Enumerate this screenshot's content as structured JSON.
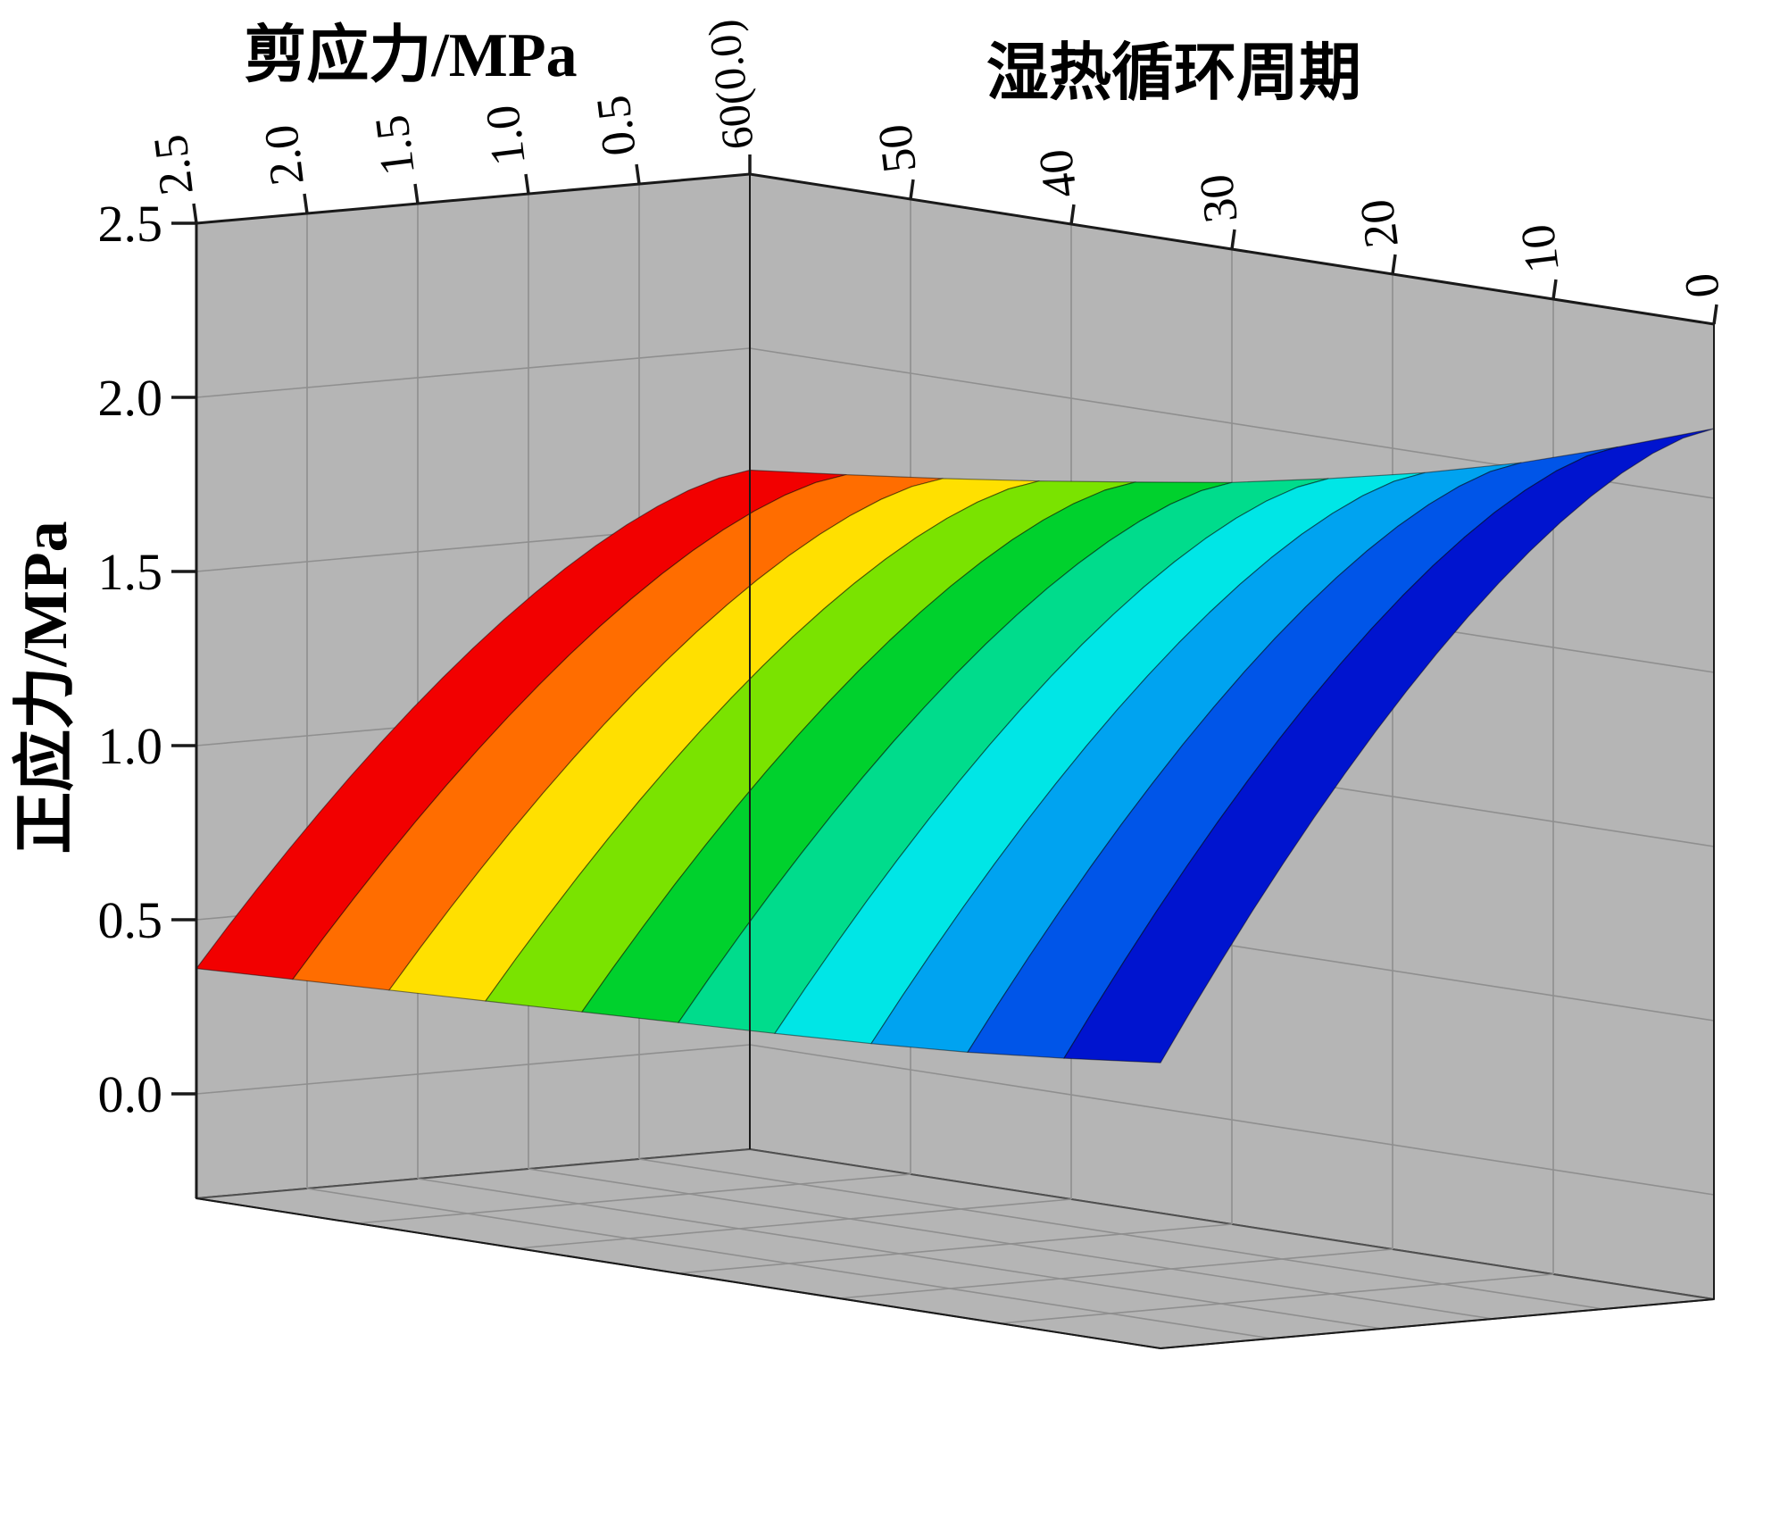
{
  "chart_data": {
    "type": "surface3d",
    "title": "",
    "z_axis": {
      "label": "正应力/MPa",
      "ticks": [
        "0.0",
        "0.5",
        "1.0",
        "1.5",
        "2.0",
        "2.5"
      ],
      "range": [
        0,
        2.5
      ]
    },
    "shear_axis": {
      "label": "剪应力/MPa",
      "ticks": [
        "2.5",
        "2.0",
        "1.5",
        "1.0",
        "0.5"
      ],
      "range": [
        0,
        2.5
      ]
    },
    "cycle_axis": {
      "label": "湿热循环周期",
      "ticks": [
        "50",
        "40",
        "30",
        "20",
        "10",
        "0"
      ],
      "corner_tick": "60(0.0)",
      "range": [
        0,
        60
      ]
    },
    "surface": {
      "colored_by": "cycle",
      "falloff_exponent": 1.55,
      "back_edge": {
        "cycles": [
          0,
          10,
          20,
          30,
          40,
          50,
          60
        ],
        "z": [
          2.2,
          2.04,
          1.92,
          1.83,
          1.76,
          1.7,
          1.65
        ]
      },
      "front_edge": {
        "cycles": [
          0,
          10,
          20,
          30,
          40,
          50,
          60
        ],
        "z": [
          0.52,
          0.47,
          0.44,
          0.42,
          0.4,
          0.38,
          0.36
        ]
      },
      "z_grid": {
        "shear": [
          0,
          0.5,
          1.0,
          1.5,
          2.0,
          2.5
        ],
        "cycles": [
          0,
          10,
          20,
          30,
          40,
          50,
          60
        ],
        "z": [
          [
            2.2,
            2.06,
            1.79,
            1.44,
            1.01,
            0.52
          ],
          [
            2.04,
            1.91,
            1.66,
            1.33,
            0.93,
            0.47
          ],
          [
            1.92,
            1.8,
            1.56,
            1.25,
            0.87,
            0.44
          ],
          [
            1.83,
            1.71,
            1.49,
            1.19,
            0.83,
            0.42
          ],
          [
            1.76,
            1.65,
            1.43,
            1.14,
            0.8,
            0.4
          ],
          [
            1.7,
            1.59,
            1.38,
            1.1,
            0.77,
            0.38
          ],
          [
            1.65,
            1.54,
            1.34,
            1.07,
            0.74,
            0.36
          ]
        ]
      },
      "bands": [
        {
          "cycle_range": [
            54,
            60
          ],
          "color": "#f20000"
        },
        {
          "cycle_range": [
            48,
            54
          ],
          "color": "#ff6d00"
        },
        {
          "cycle_range": [
            42,
            48
          ],
          "color": "#ffe000"
        },
        {
          "cycle_range": [
            36,
            42
          ],
          "color": "#7ae300"
        },
        {
          "cycle_range": [
            30,
            36
          ],
          "color": "#00d12d"
        },
        {
          "cycle_range": [
            24,
            30
          ],
          "color": "#00dc8c"
        },
        {
          "cycle_range": [
            18,
            24
          ],
          "color": "#00e6e6"
        },
        {
          "cycle_range": [
            12,
            18
          ],
          "color": "#00a3f0"
        },
        {
          "cycle_range": [
            6,
            12
          ],
          "color": "#0055e8"
        },
        {
          "cycle_range": [
            0,
            6
          ],
          "color": "#0014cf"
        }
      ]
    },
    "style": {
      "wall_color": "#b5b5b5",
      "grid_color": "#8f8f8f",
      "edge_color": "#4f4f4f",
      "axis_line_color": "#1a1a1a",
      "text_color": "#000000"
    }
  }
}
